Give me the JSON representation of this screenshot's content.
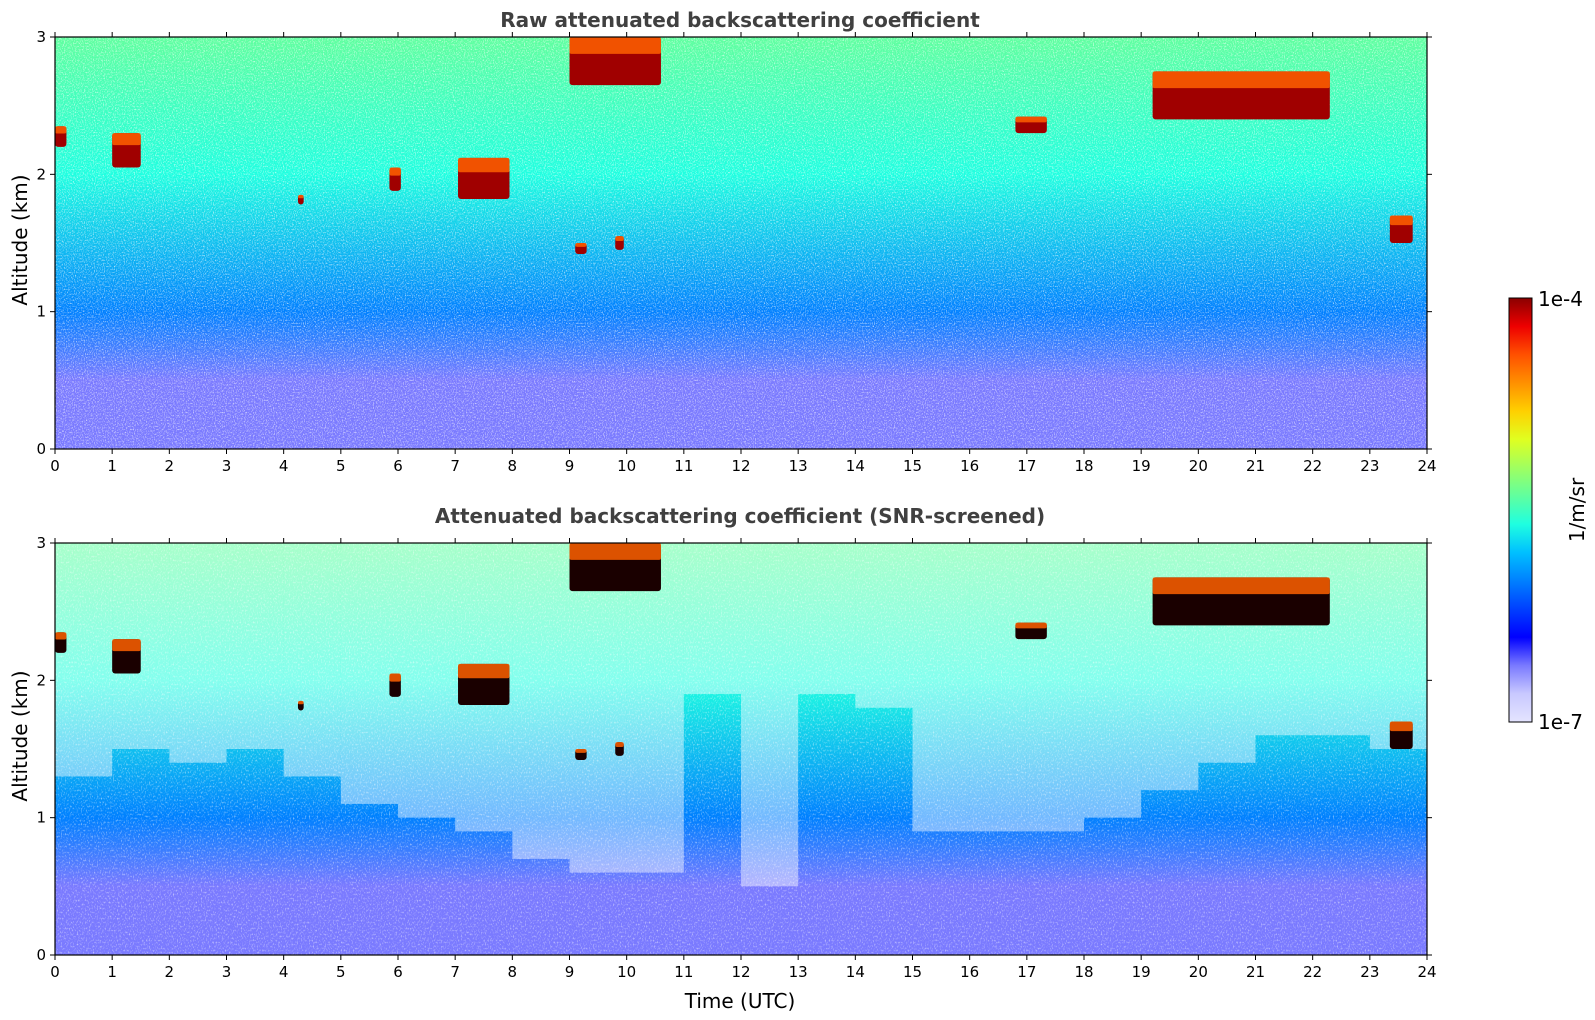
{
  "chart_data": [
    {
      "type": "heatmap",
      "title": "Raw attenuated backscattering coefficient",
      "xlabel": "",
      "ylabel": "Altitude (km)",
      "xlim": [
        0,
        24
      ],
      "ylim": [
        0,
        3
      ],
      "x_ticks": [
        "0",
        "1",
        "2",
        "3",
        "4",
        "5",
        "6",
        "7",
        "8",
        "9",
        "10",
        "11",
        "12",
        "13",
        "14",
        "15",
        "16",
        "17",
        "18",
        "19",
        "20",
        "21",
        "22",
        "23",
        "24"
      ],
      "y_ticks": [
        "0",
        "1",
        "2",
        "3"
      ],
      "colormap": "jet",
      "color_scale": "log",
      "color_range": [
        1e-07,
        0.0001
      ],
      "background_profile": [
        {
          "altitude_km": 0.0,
          "value": "2e-7"
        },
        {
          "altitude_km": 0.5,
          "value": "3e-7"
        },
        {
          "altitude_km": 1.0,
          "value": "8e-7"
        },
        {
          "altitude_km": 2.0,
          "value": "2e-6"
        },
        {
          "altitude_km": 3.0,
          "value": "4e-6"
        }
      ],
      "clouds": [
        {
          "t0": 0.0,
          "t1": 0.2,
          "base_km": 2.2,
          "top_km": 2.35
        },
        {
          "t0": 1.0,
          "t1": 1.5,
          "base_km": 2.05,
          "top_km": 2.3
        },
        {
          "t0": 4.25,
          "t1": 4.35,
          "base_km": 1.78,
          "top_km": 1.85
        },
        {
          "t0": 5.85,
          "t1": 6.05,
          "base_km": 1.88,
          "top_km": 2.05
        },
        {
          "t0": 7.05,
          "t1": 7.95,
          "base_km": 1.82,
          "top_km": 2.12
        },
        {
          "t0": 9.0,
          "t1": 10.6,
          "base_km": 2.65,
          "top_km": 3.0
        },
        {
          "t0": 9.1,
          "t1": 9.3,
          "base_km": 1.42,
          "top_km": 1.5
        },
        {
          "t0": 9.8,
          "t1": 9.95,
          "base_km": 1.45,
          "top_km": 1.55
        },
        {
          "t0": 16.8,
          "t1": 17.35,
          "base_km": 2.3,
          "top_km": 2.42
        },
        {
          "t0": 19.2,
          "t1": 22.3,
          "base_km": 2.4,
          "top_km": 2.75
        },
        {
          "t0": 23.35,
          "t1": 23.75,
          "base_km": 1.5,
          "top_km": 1.7
        }
      ]
    },
    {
      "type": "heatmap",
      "title": "Attenuated backscattering coefficient (SNR-screened)",
      "xlabel": "Time (UTC)",
      "ylabel": "Altitude (km)",
      "xlim": [
        0,
        24
      ],
      "ylim": [
        0,
        3
      ],
      "x_ticks": [
        "0",
        "1",
        "2",
        "3",
        "4",
        "5",
        "6",
        "7",
        "8",
        "9",
        "10",
        "11",
        "12",
        "13",
        "14",
        "15",
        "16",
        "17",
        "18",
        "19",
        "20",
        "21",
        "22",
        "23",
        "24"
      ],
      "y_ticks": [
        "0",
        "1",
        "2",
        "3"
      ],
      "colormap": "jet",
      "color_scale": "log",
      "color_range": [
        1e-07,
        0.0001
      ],
      "masked_color": "white",
      "screened_above_km_by_hour": [
        1.3,
        1.5,
        1.4,
        1.5,
        1.3,
        1.1,
        1.0,
        0.9,
        0.7,
        0.6,
        0.6,
        1.9,
        0.5,
        1.9,
        1.8,
        0.9,
        0.9,
        0.9,
        1.0,
        1.2,
        1.4,
        1.6,
        1.6,
        1.5,
        1.5
      ]
    }
  ],
  "colorbar": {
    "label": "1/m/sr",
    "min_label": "1e-7",
    "max_label": "1e-4",
    "colors": [
      "#e4e4ff",
      "#c8c8ff",
      "#7a7aff",
      "#0000ff",
      "#0040ff",
      "#0080ff",
      "#00c0ff",
      "#1fffe0",
      "#60ff9f",
      "#a0ff60",
      "#e0ff20",
      "#ffd000",
      "#ff9000",
      "#ff5000",
      "#ee0000",
      "#8b0000"
    ]
  }
}
